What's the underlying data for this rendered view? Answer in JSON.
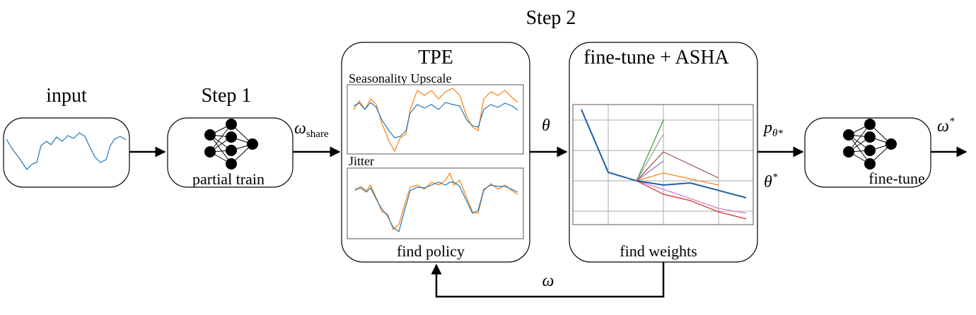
{
  "title": "Step 2",
  "input": {
    "title": "input"
  },
  "step1": {
    "title": "Step 1",
    "label": "partial train"
  },
  "tpe": {
    "title": "TPE",
    "plots": [
      "Seasonality Upscale",
      "Jitter"
    ],
    "label": "find policy"
  },
  "asha": {
    "title": "fine-tune + ASHA",
    "label": "find weights"
  },
  "final": {
    "label": "fine-tune"
  },
  "edges": {
    "share": {
      "symbol": "ω",
      "subscript": "share"
    },
    "theta": {
      "symbol": "θ"
    },
    "p": {
      "symbol": "p",
      "subscript": "θ*"
    },
    "theta_star": {
      "symbol": "θ",
      "superscript": "*"
    },
    "omega_star": {
      "symbol": "ω",
      "superscript": "*"
    },
    "feedback": {
      "symbol": "ω"
    }
  }
}
